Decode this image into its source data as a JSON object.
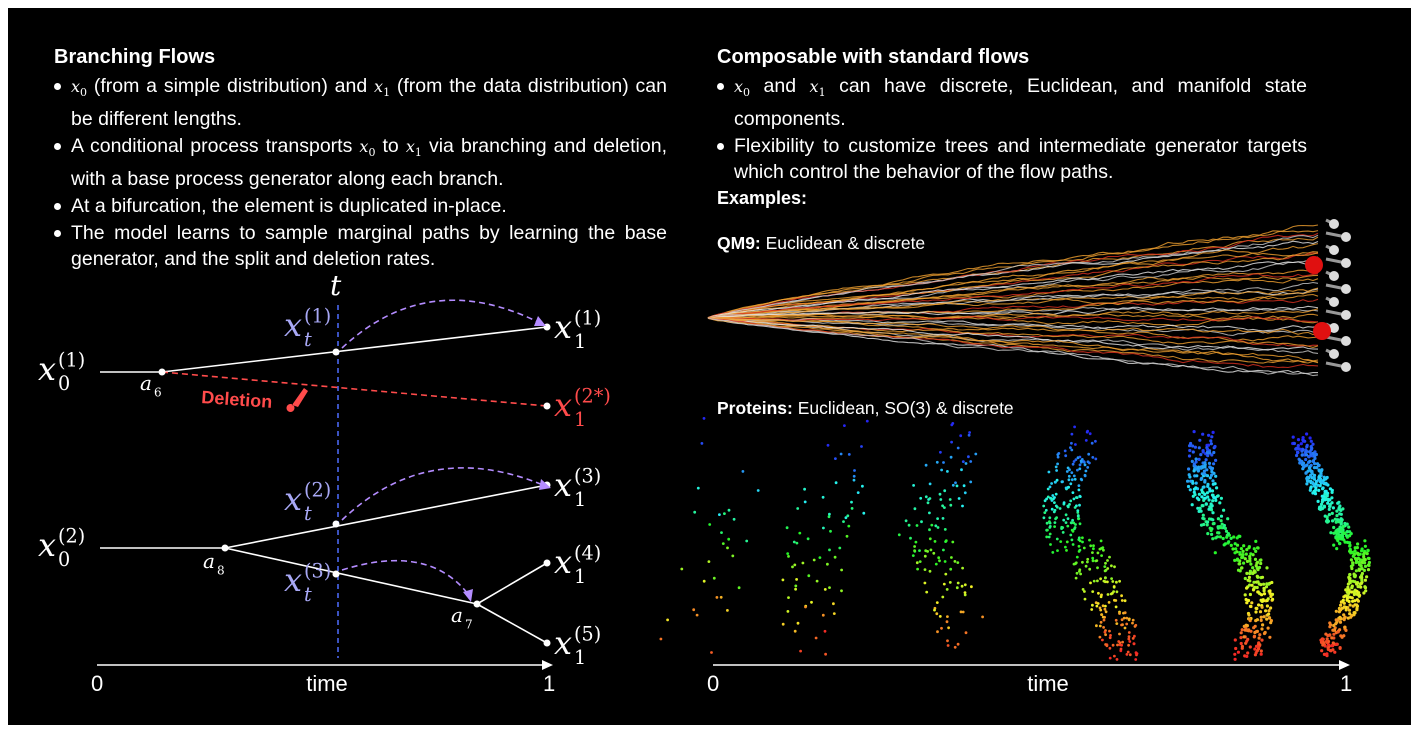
{
  "left": {
    "title": "Branching Flows",
    "bullets": [
      [
        {
          "var": "x",
          "sub": "0"
        },
        " (from a simple distribution) and ",
        {
          "var": "x",
          "sub": "1"
        },
        " (from the data distribution) can be different lengths."
      ],
      [
        "A conditional process transports ",
        {
          "var": "x",
          "sub": "0"
        },
        " to ",
        {
          "var": "x",
          "sub": "1"
        },
        " via branching and deletion, with a base process generator along each branch."
      ],
      [
        "At a bifurcation, the element is duplicated in-place."
      ],
      [
        "The model learns to sample marginal paths by learning the base generator, and the split and deletion rates."
      ]
    ],
    "axis": {
      "start": "0",
      "label": "time",
      "end": "1"
    }
  },
  "right": {
    "title": "Composable with standard flows",
    "bullets": [
      [
        {
          "var": "x",
          "sub": "0"
        },
        " and ",
        {
          "var": "x",
          "sub": "1"
        },
        " can have discrete, Euclidean, and manifold state components."
      ],
      [
        "Flexibility to customize trees and intermediate generator targets which control the behavior of the flow paths."
      ]
    ],
    "examples": "Examples:",
    "qm9": {
      "name": "QM9:",
      "desc": "Euclidean & discrete"
    },
    "proteins": {
      "name": "Proteins:",
      "desc": "Euclidean, SO(3) & discrete"
    },
    "axis": {
      "start": "0",
      "label": "time",
      "end": "1"
    }
  },
  "diagram": {
    "time_var": "t",
    "deletion": "Deletion",
    "x0_1": {
      "var": "x",
      "sub": "0",
      "sup": "(1)"
    },
    "x0_2": {
      "var": "x",
      "sub": "0",
      "sup": "(2)"
    },
    "x1_1": {
      "var": "x",
      "sub": "1",
      "sup": "(1)"
    },
    "x1_2star": {
      "var": "x",
      "sub": "1",
      "sup": "(2*)"
    },
    "x1_3": {
      "var": "x",
      "sub": "1",
      "sup": "(3)"
    },
    "x1_4": {
      "var": "x",
      "sub": "1",
      "sup": "(4)"
    },
    "x1_5": {
      "var": "x",
      "sub": "1",
      "sup": "(5)"
    },
    "xt_1": {
      "var": "x",
      "sub": "t",
      "sup": "(1)"
    },
    "xt_2": {
      "var": "x",
      "sub": "t",
      "sup": "(2)"
    },
    "xt_3": {
      "var": "x",
      "sub": "t",
      "sup": "(3)"
    },
    "a6": {
      "var": "a",
      "sub": "6"
    },
    "a8": {
      "var": "a",
      "sub": "8"
    },
    "a7": {
      "var": "a",
      "sub": "7"
    }
  }
}
